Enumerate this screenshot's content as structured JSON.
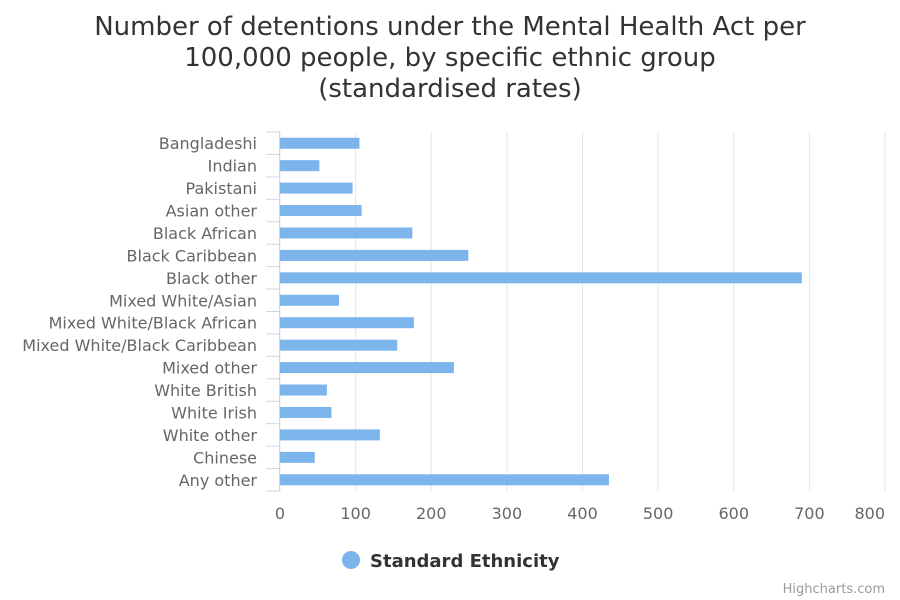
{
  "chart_data": {
    "type": "bar",
    "orientation": "horizontal",
    "title": "Number of detentions under the Mental Health Act per 100,000 people, by specific ethnic group (standardised rates)",
    "categories": [
      "Bangladeshi",
      "Indian",
      "Pakistani",
      "Asian other",
      "Black African",
      "Black Caribbean",
      "Black other",
      "Mixed White/Asian",
      "Mixed White/Black African",
      "Mixed White/Black Caribbean",
      "Mixed other",
      "White British",
      "White Irish",
      "White other",
      "Chinese",
      "Any other"
    ],
    "series": [
      {
        "name": "Standard Ethnicity",
        "color": "#7cb5ec",
        "values": [
          105,
          52,
          96,
          108,
          175,
          249,
          690,
          78,
          177,
          155,
          230,
          62,
          68,
          132,
          46,
          435
        ]
      }
    ],
    "xlim": [
      0,
      800
    ],
    "xticks": [
      0,
      100,
      200,
      300,
      400,
      500,
      600,
      700,
      800
    ],
    "grid": true,
    "legend": "bottom-center",
    "credits": "Highcharts.com"
  }
}
